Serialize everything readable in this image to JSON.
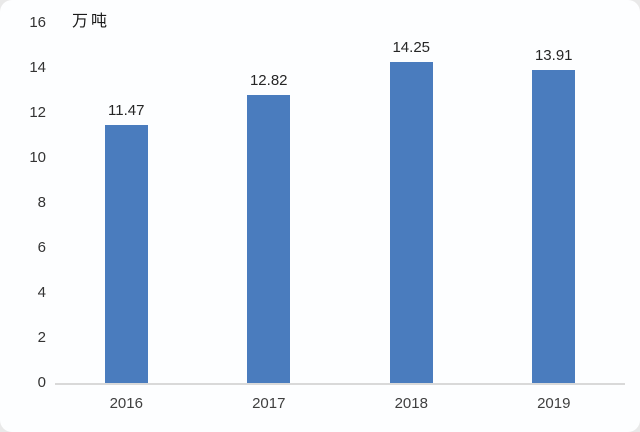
{
  "chart_data": {
    "type": "bar",
    "title": "",
    "unit_label": "万吨",
    "categories": [
      "2016",
      "2017",
      "2018",
      "2019"
    ],
    "values": [
      11.47,
      12.82,
      14.25,
      13.91
    ],
    "data_labels": [
      "11.47",
      "12.82",
      "14.25",
      "13.91"
    ],
    "y_ticks": [
      0,
      2,
      4,
      6,
      8,
      10,
      12,
      14,
      16
    ],
    "ylim": [
      0,
      16
    ],
    "xlabel": "",
    "ylabel": "万吨",
    "grid": false,
    "legend_position": "none",
    "bar_color": "#4A7CBE",
    "axis_line_color": "#D9D9D9",
    "text_color": "#333333",
    "background_color": "#FDFEFF"
  }
}
